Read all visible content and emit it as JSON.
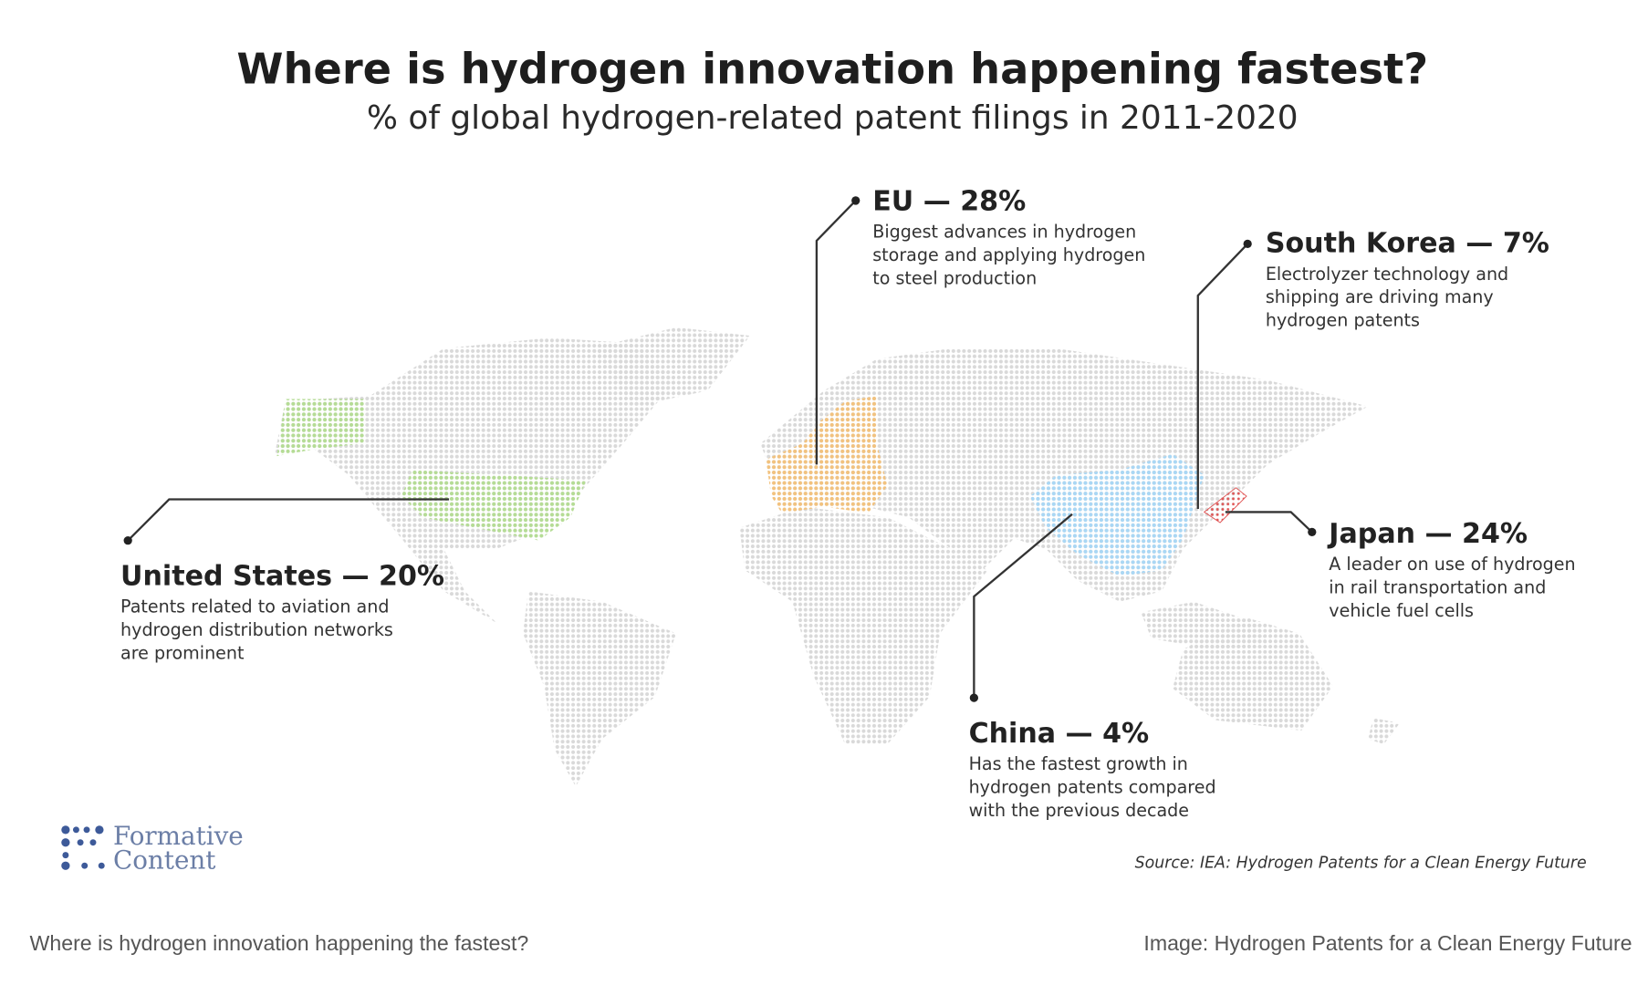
{
  "title": "Where is hydrogen innovation happening fastest?",
  "subtitle": "% of global hydrogen-related patent filings in 2011-2020",
  "regions": [
    {
      "heading": "EU — 28%",
      "description": [
        "Biggest advances in hydrogen",
        "storage and applying hydrogen",
        "to steel production"
      ]
    },
    {
      "heading": "South Korea — 7%",
      "description": [
        "Electrolyzer technology and",
        "shipping are driving many",
        "hydrogen patents"
      ]
    },
    {
      "heading": "United States — 20%",
      "description": [
        "Patents related to aviation and",
        "hydrogen distribution networks",
        "are prominent"
      ]
    },
    {
      "heading": "Japan — 24%",
      "description": [
        "A leader on use of hydrogen",
        "in rail transportation and",
        "vehicle fuel cells"
      ]
    },
    {
      "heading": "China — 4%",
      "description": [
        "Has the fastest growth in",
        "hydrogen patents compared",
        "with the previous decade"
      ]
    }
  ],
  "logo": [
    "Formative",
    "Content"
  ],
  "source": "Source: IEA: Hydrogen Patents for a Clean Energy Future",
  "caption": {
    "text": "Where is hydrogen innovation happening the fastest?",
    "credit": "Image: Hydrogen Patents for a Clean Energy Future"
  }
}
